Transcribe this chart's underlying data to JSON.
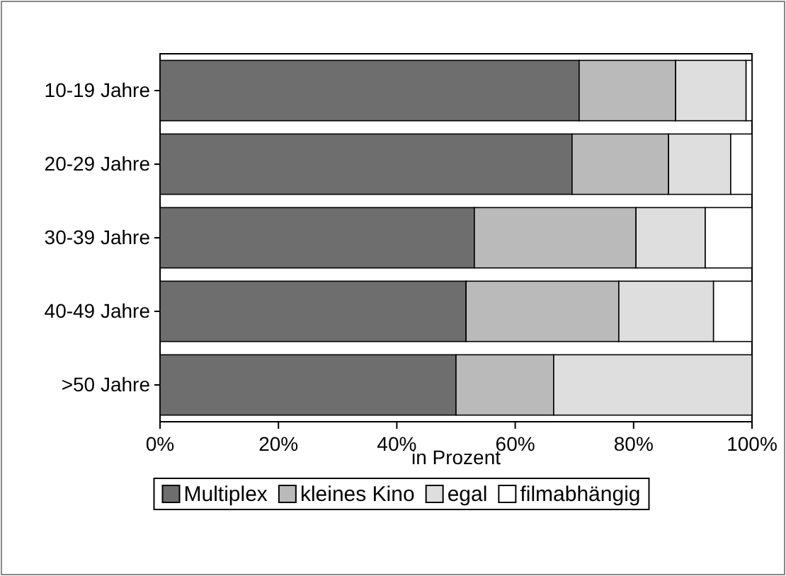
{
  "chart_data": {
    "type": "bar",
    "orientation": "horizontal",
    "stacked": true,
    "xlabel": "in Prozent",
    "categories": [
      "10-19 Jahre",
      "20-29 Jahre",
      "30-39 Jahre",
      "40-49 Jahre",
      ">50 Jahre"
    ],
    "series": [
      {
        "name": "Multiplex",
        "color": "#6e6e6e",
        "values": [
          70.8,
          69.6,
          53.1,
          51.7,
          50.0
        ]
      },
      {
        "name": "kleines Kino",
        "color": "#bababa",
        "values": [
          16.3,
          16.3,
          27.3,
          25.8,
          16.5
        ]
      },
      {
        "name": "egal",
        "color": "#dedede",
        "values": [
          11.9,
          10.5,
          11.7,
          16.0,
          33.5
        ]
      },
      {
        "name": "filmabhängig",
        "color": "#ffffff",
        "values": [
          1.0,
          3.6,
          7.9,
          6.5,
          0
        ]
      }
    ],
    "xlim": [
      0,
      100
    ],
    "xticks": [
      {
        "value": 0,
        "label": "0%"
      },
      {
        "value": 20,
        "label": "20%"
      },
      {
        "value": 40,
        "label": "40%"
      },
      {
        "value": 60,
        "label": "60%"
      },
      {
        "value": 80,
        "label": "80%"
      },
      {
        "value": 100,
        "label": "100%"
      }
    ],
    "grid": false,
    "legend": "bottom"
  }
}
